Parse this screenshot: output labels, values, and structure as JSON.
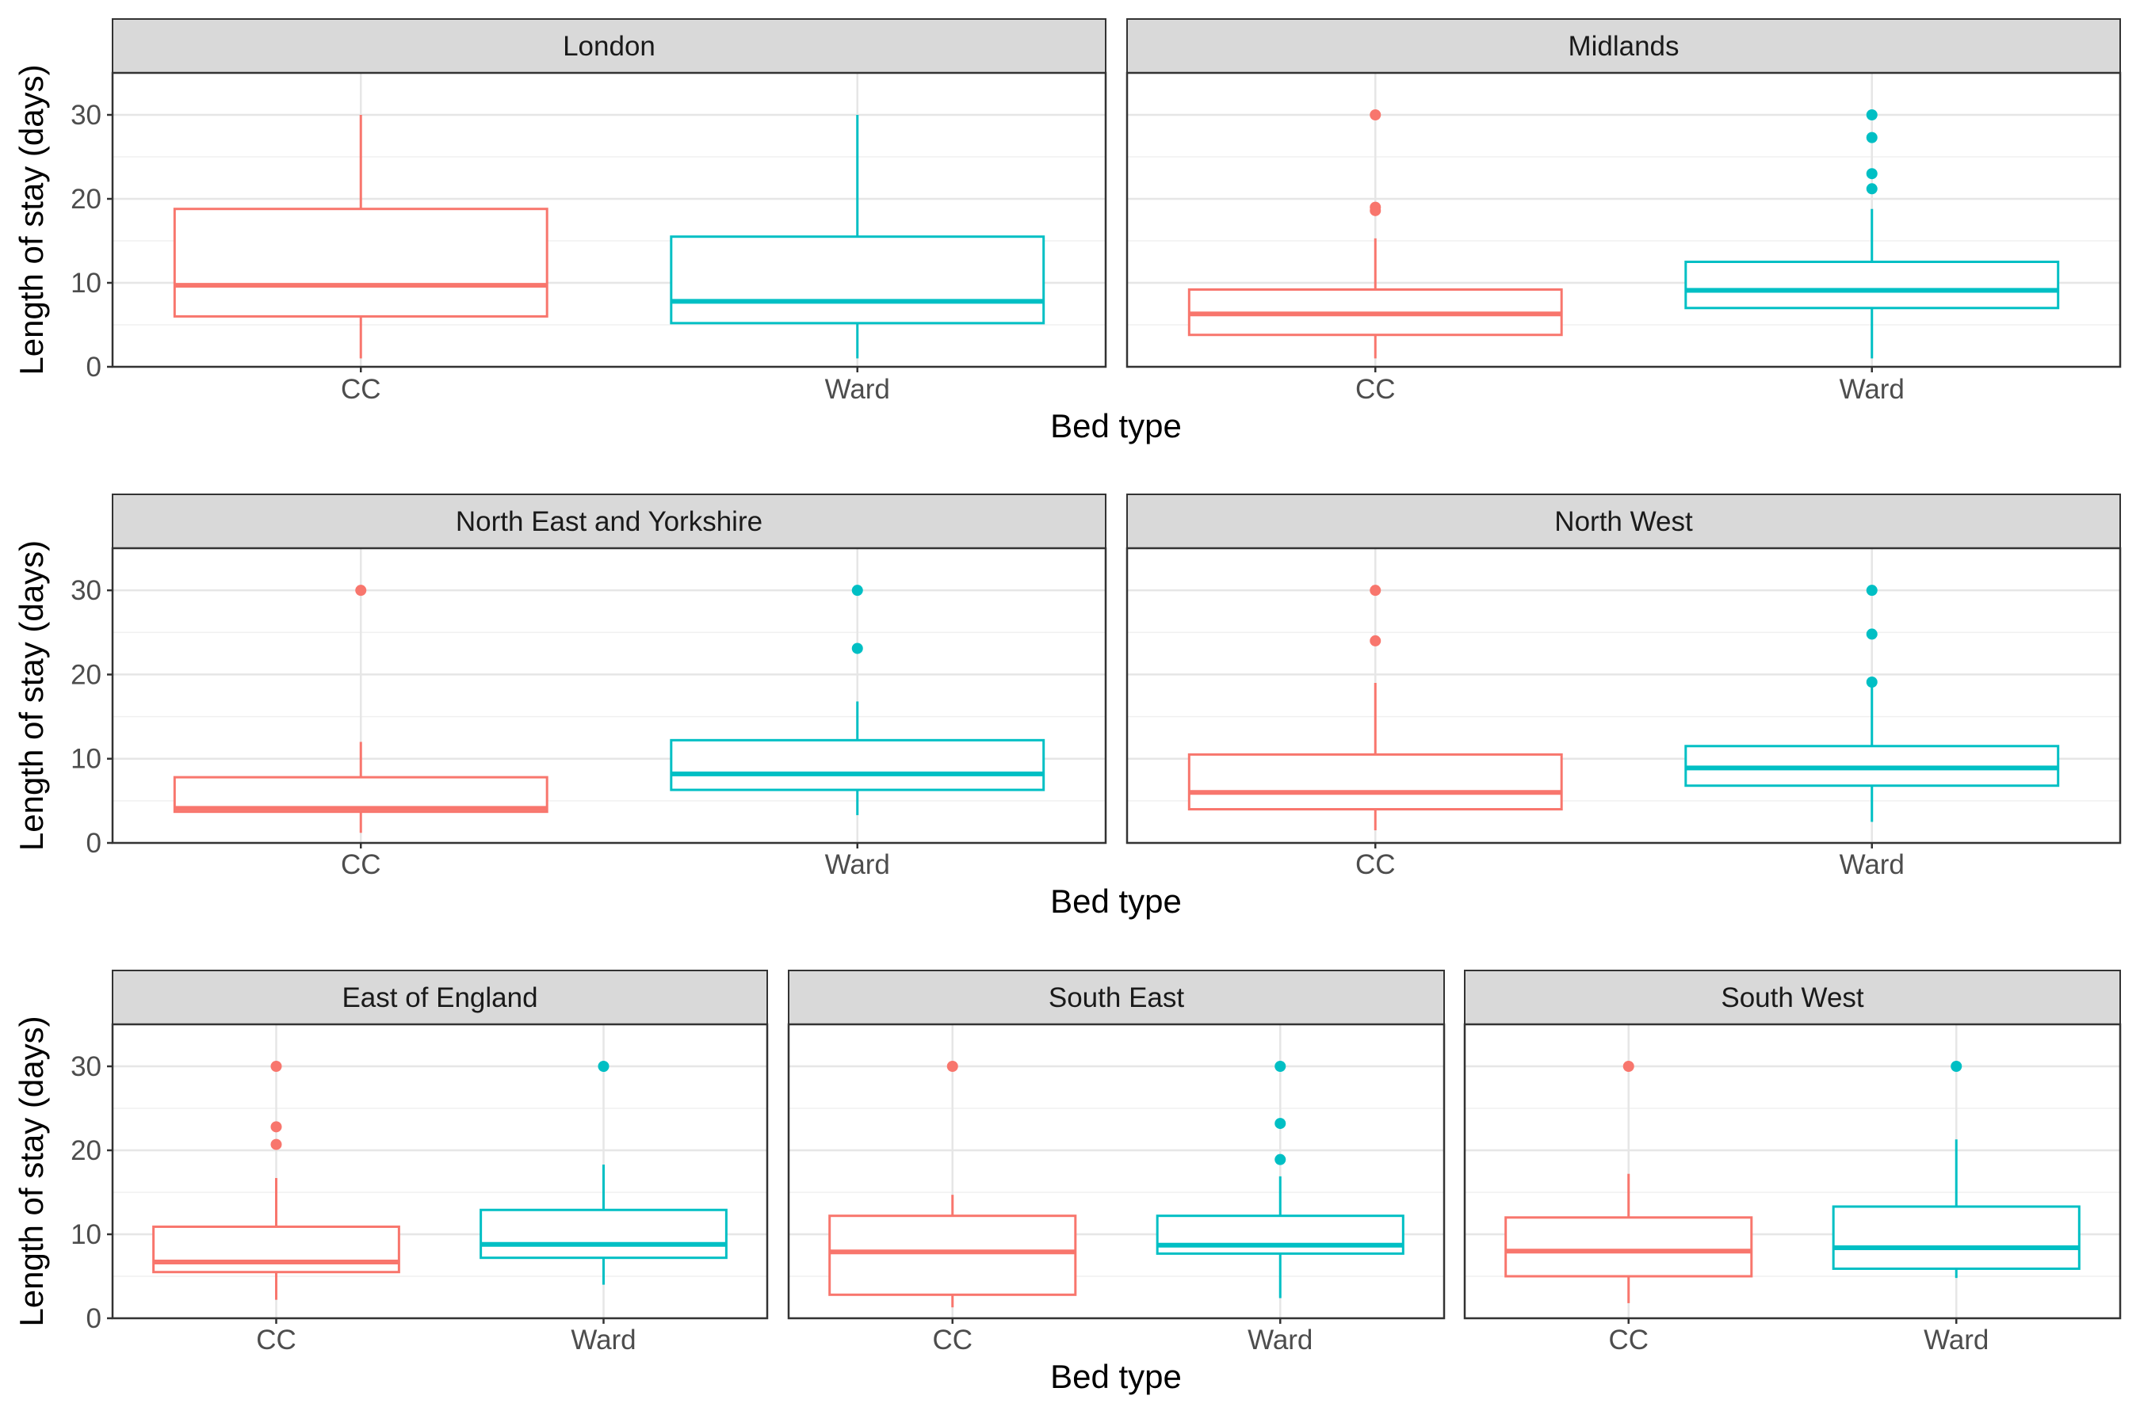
{
  "chart_data": {
    "type": "boxplot",
    "xlabel": "Bed type",
    "ylabel": "Length of stay (days)",
    "categories": [
      "CC",
      "Ward"
    ],
    "ylim": [
      0,
      35
    ],
    "yticks": [
      0,
      10,
      20,
      30
    ],
    "grid": true,
    "colors": {
      "CC": "#F8766D",
      "Ward": "#00BFC4"
    },
    "panels": [
      {
        "region": "London",
        "boxes": [
          {
            "category": "CC",
            "min": 1,
            "q1": 6,
            "median": 9.7,
            "q3": 18.8,
            "max": 30,
            "outliers": []
          },
          {
            "category": "Ward",
            "min": 1,
            "q1": 5.2,
            "median": 7.8,
            "q3": 15.5,
            "max": 30,
            "outliers": []
          }
        ]
      },
      {
        "region": "Midlands",
        "boxes": [
          {
            "category": "CC",
            "min": 1,
            "q1": 3.8,
            "median": 6.3,
            "q3": 9.2,
            "max": 15.3,
            "outliers": [
              18.6,
              19,
              30
            ]
          },
          {
            "category": "Ward",
            "min": 1,
            "q1": 7,
            "median": 9.1,
            "q3": 12.5,
            "max": 18.8,
            "outliers": [
              21.2,
              23,
              27.3,
              30
            ]
          }
        ]
      },
      {
        "region": "North East and Yorkshire",
        "boxes": [
          {
            "category": "CC",
            "min": 1.2,
            "q1": 3.7,
            "median": 4.1,
            "q3": 7.8,
            "max": 12,
            "outliers": [
              30
            ]
          },
          {
            "category": "Ward",
            "min": 3.3,
            "q1": 6.3,
            "median": 8.2,
            "q3": 12.2,
            "max": 16.8,
            "outliers": [
              23.1,
              30
            ]
          }
        ]
      },
      {
        "region": "North West",
        "boxes": [
          {
            "category": "CC",
            "min": 1.5,
            "q1": 4,
            "median": 6,
            "q3": 10.5,
            "max": 19,
            "outliers": [
              24,
              30
            ]
          },
          {
            "category": "Ward",
            "min": 2.5,
            "q1": 6.8,
            "median": 8.9,
            "q3": 11.5,
            "max": 18.5,
            "outliers": [
              19.1,
              24.8,
              30
            ]
          }
        ]
      },
      {
        "region": "East of England",
        "boxes": [
          {
            "category": "CC",
            "min": 2.2,
            "q1": 5.5,
            "median": 6.7,
            "q3": 10.9,
            "max": 16.7,
            "outliers": [
              20.7,
              22.8,
              30
            ]
          },
          {
            "category": "Ward",
            "min": 4,
            "q1": 7.2,
            "median": 8.8,
            "q3": 12.9,
            "max": 18.3,
            "outliers": [
              30
            ]
          }
        ]
      },
      {
        "region": "South East",
        "boxes": [
          {
            "category": "CC",
            "min": 1.3,
            "q1": 2.8,
            "median": 7.9,
            "q3": 12.2,
            "max": 14.7,
            "outliers": [
              30
            ]
          },
          {
            "category": "Ward",
            "min": 2.4,
            "q1": 7.7,
            "median": 8.7,
            "q3": 12.2,
            "max": 16.9,
            "outliers": [
              18.9,
              23.2,
              30
            ]
          }
        ]
      },
      {
        "region": "South West",
        "boxes": [
          {
            "category": "CC",
            "min": 1.8,
            "q1": 5,
            "median": 8,
            "q3": 12,
            "max": 17.2,
            "outliers": [
              30
            ]
          },
          {
            "category": "Ward",
            "min": 4.8,
            "q1": 5.9,
            "median": 8.4,
            "q3": 13.3,
            "max": 21.3,
            "outliers": [
              30
            ]
          }
        ]
      }
    ]
  }
}
